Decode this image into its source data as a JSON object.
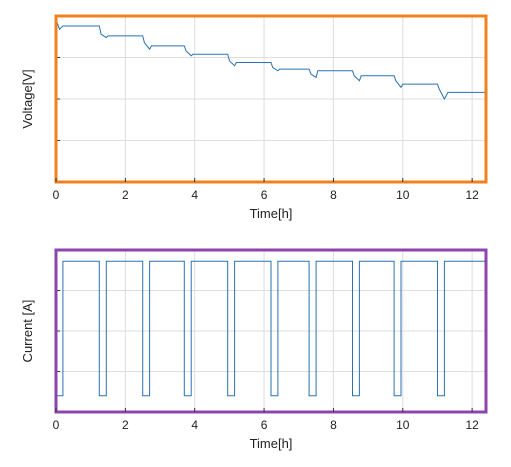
{
  "colors": {
    "top_frame": "#f0821e",
    "bottom_frame": "#8e44ad",
    "series": "#2a72b5"
  },
  "chart_data": [
    {
      "type": "line",
      "frame_color": "#f0821e",
      "xlabel": "Time[h]",
      "ylabel": "Voltage[V]",
      "xlim": [
        0,
        12.4
      ],
      "ylim": [
        0,
        1
      ],
      "xticks": [
        0,
        2,
        4,
        6,
        8,
        10,
        12
      ],
      "ytick_labels_shown": false,
      "grid": true,
      "series": [
        {
          "color": "#2a72b5",
          "points": [
            [
              0.0,
              0.98
            ],
            [
              0.1,
              0.92
            ],
            [
              0.2,
              0.94
            ],
            [
              1.25,
              0.94
            ],
            [
              1.3,
              0.89
            ],
            [
              1.45,
              0.87
            ],
            [
              1.5,
              0.88
            ],
            [
              2.5,
              0.88
            ],
            [
              2.55,
              0.84
            ],
            [
              2.7,
              0.8
            ],
            [
              2.75,
              0.82
            ],
            [
              3.7,
              0.82
            ],
            [
              3.75,
              0.79
            ],
            [
              3.9,
              0.76
            ],
            [
              3.95,
              0.77
            ],
            [
              4.95,
              0.77
            ],
            [
              5.0,
              0.73
            ],
            [
              5.15,
              0.7
            ],
            [
              5.2,
              0.72
            ],
            [
              6.2,
              0.72
            ],
            [
              6.25,
              0.69
            ],
            [
              6.4,
              0.67
            ],
            [
              6.45,
              0.68
            ],
            [
              7.3,
              0.68
            ],
            [
              7.35,
              0.65
            ],
            [
              7.5,
              0.63
            ],
            [
              7.55,
              0.67
            ],
            [
              8.55,
              0.67
            ],
            [
              8.6,
              0.64
            ],
            [
              8.75,
              0.61
            ],
            [
              8.8,
              0.64
            ],
            [
              9.75,
              0.64
            ],
            [
              9.8,
              0.61
            ],
            [
              9.95,
              0.57
            ],
            [
              10.0,
              0.59
            ],
            [
              11.0,
              0.59
            ],
            [
              11.05,
              0.56
            ],
            [
              11.2,
              0.5
            ],
            [
              11.3,
              0.54
            ],
            [
              12.4,
              0.54
            ]
          ]
        }
      ]
    },
    {
      "type": "line",
      "frame_color": "#8e44ad",
      "xlabel": "Time[h]",
      "ylabel": "Current [A]",
      "xlim": [
        0,
        12.4
      ],
      "ylim": [
        0,
        1
      ],
      "xticks": [
        0,
        2,
        4,
        6,
        8,
        10,
        12
      ],
      "ytick_labels_shown": false,
      "grid": true,
      "series": [
        {
          "color": "#2a72b5",
          "points": [
            [
              0.0,
              0.1
            ],
            [
              0.2,
              0.1
            ],
            [
              0.2,
              0.93
            ],
            [
              1.25,
              0.93
            ],
            [
              1.25,
              0.1
            ],
            [
              1.45,
              0.1
            ],
            [
              1.45,
              0.93
            ],
            [
              2.5,
              0.93
            ],
            [
              2.5,
              0.1
            ],
            [
              2.7,
              0.1
            ],
            [
              2.7,
              0.93
            ],
            [
              3.7,
              0.93
            ],
            [
              3.7,
              0.1
            ],
            [
              3.9,
              0.1
            ],
            [
              3.9,
              0.93
            ],
            [
              4.95,
              0.93
            ],
            [
              4.95,
              0.1
            ],
            [
              5.15,
              0.1
            ],
            [
              5.15,
              0.93
            ],
            [
              6.2,
              0.93
            ],
            [
              6.2,
              0.1
            ],
            [
              6.4,
              0.1
            ],
            [
              6.4,
              0.93
            ],
            [
              7.3,
              0.93
            ],
            [
              7.3,
              0.1
            ],
            [
              7.5,
              0.1
            ],
            [
              7.5,
              0.93
            ],
            [
              8.55,
              0.93
            ],
            [
              8.55,
              0.1
            ],
            [
              8.75,
              0.1
            ],
            [
              8.75,
              0.93
            ],
            [
              9.75,
              0.93
            ],
            [
              9.75,
              0.1
            ],
            [
              9.95,
              0.1
            ],
            [
              9.95,
              0.93
            ],
            [
              11.0,
              0.93
            ],
            [
              11.0,
              0.1
            ],
            [
              11.2,
              0.1
            ],
            [
              11.2,
              0.93
            ],
            [
              12.4,
              0.93
            ]
          ]
        }
      ]
    }
  ]
}
